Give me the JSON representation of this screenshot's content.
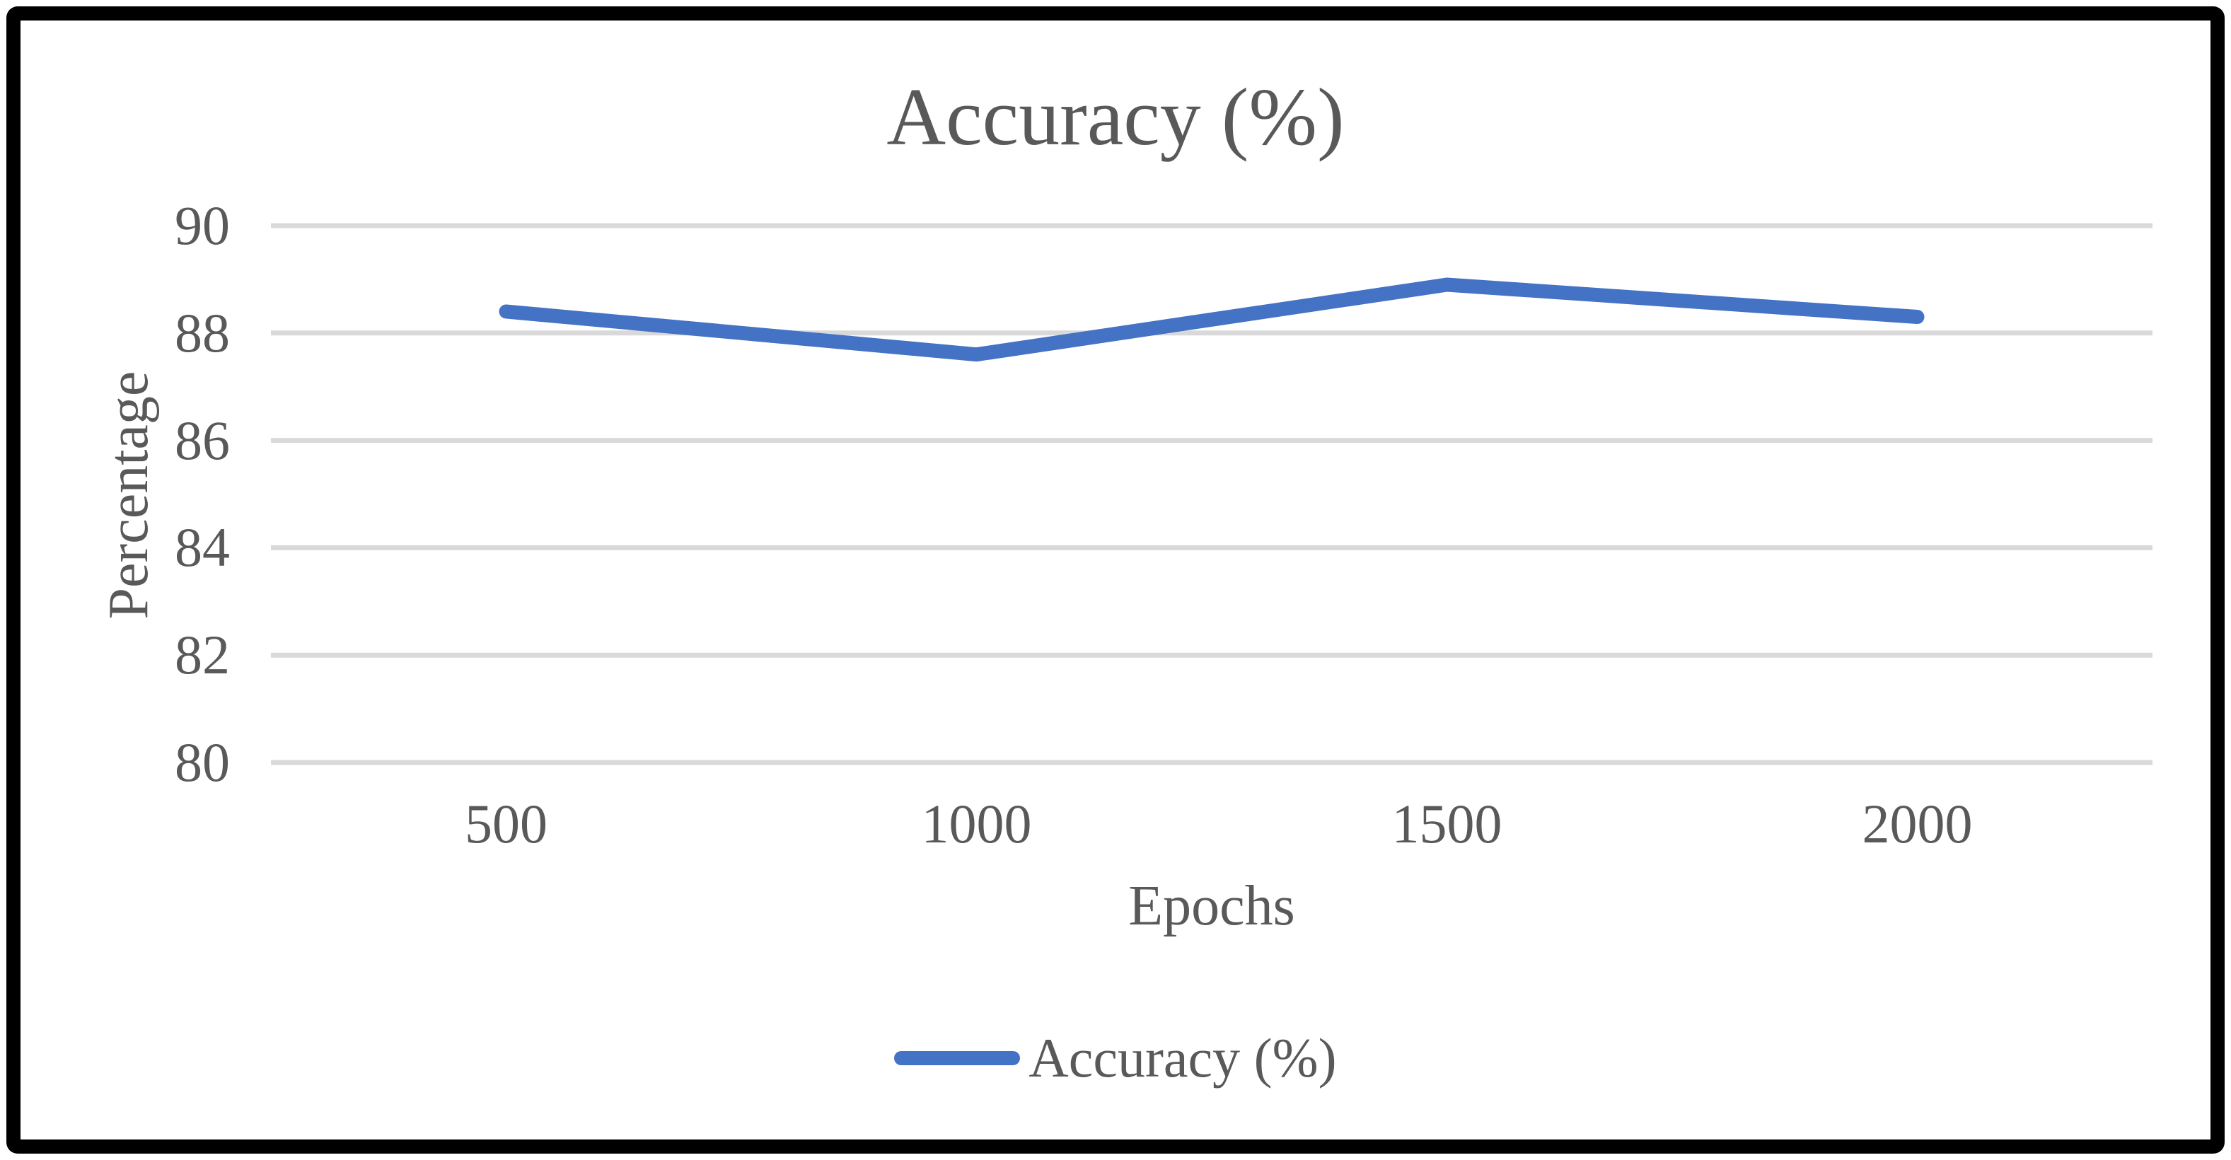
{
  "chart_data": {
    "type": "line",
    "title": "Accuracy (%)",
    "xlabel": "Epochs",
    "ylabel": "Percentage",
    "categories": [
      "500",
      "1000",
      "1500",
      "2000"
    ],
    "series": [
      {
        "name": "Accuracy (%)",
        "values": [
          88.4,
          87.6,
          88.9,
          88.3
        ]
      }
    ],
    "ylim": [
      80,
      90
    ],
    "yticks": [
      90,
      88,
      86,
      84,
      82,
      80
    ],
    "grid": "horizontal",
    "legend_position": "bottom"
  },
  "colors": {
    "line": "#4472C4",
    "gridline": "#D9D9D9",
    "text": "#595959",
    "frame": "#000000",
    "background": "#ffffff"
  }
}
